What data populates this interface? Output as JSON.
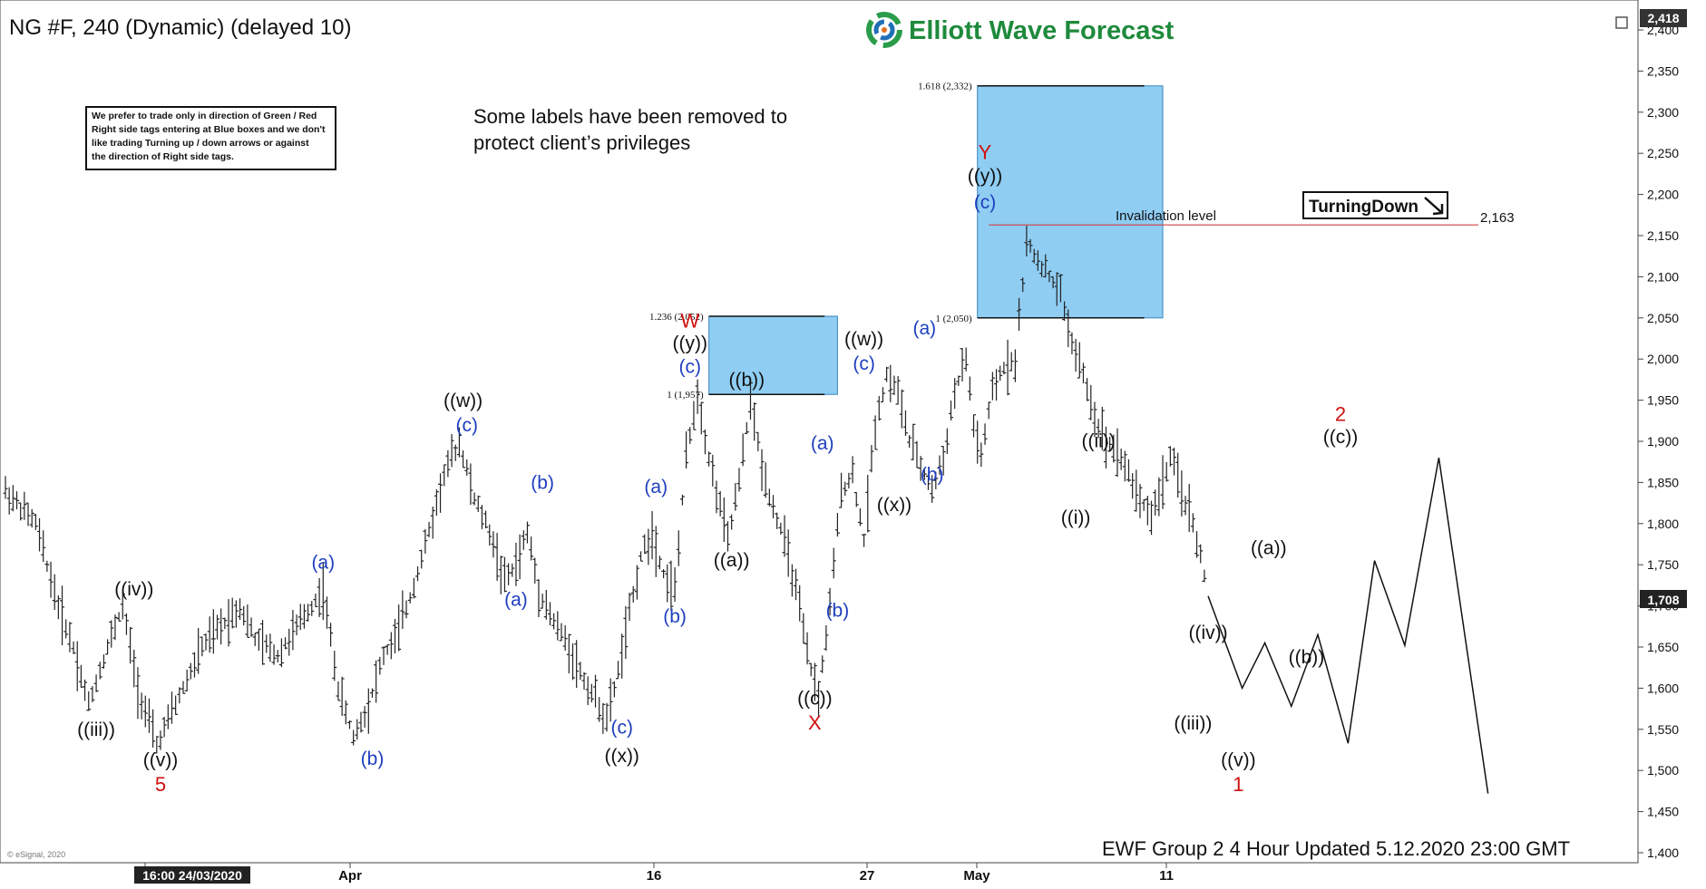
{
  "header": {
    "symbol_title": "NG #F, 240 (Dynamic) (delayed 10)",
    "brand": "Elliott Wave Forecast",
    "notice": "Some labels have been removed to protect client’s privileges",
    "trade_note": "We prefer to trade only in direction of Green / Red Right side tags entering at Blue boxes and we don't like trading Turning up / down arrows or against the direction of Right side tags.",
    "footer": "EWF Group 2 4 Hour Updated 5.12.2020 23:00 GMT",
    "copyright": "© eSignal, 2020",
    "turning_tag": "TurningDown",
    "invalidation_label": "Invalidation level",
    "invalidation_value": "2,163",
    "last_price": "1,708",
    "top_price": "2,418"
  },
  "colors": {
    "bluebox": "#8fcdf3",
    "wave_blue": "#1f3fbf",
    "wave_red": "#d01010",
    "wave_black": "#111111",
    "candle": "#222222",
    "invalidation_line": "#d04040"
  },
  "chart_data": {
    "type": "line",
    "ylim": [
      1400,
      2418
    ],
    "y_ticks": [
      "2,400",
      "2,350",
      "2,300",
      "2,250",
      "2,200",
      "2,150",
      "2,100",
      "2,050",
      "2,000",
      "1,950",
      "1,900",
      "1,850",
      "1,800",
      "1,750",
      "1,700",
      "1,650",
      "1,600",
      "1,550",
      "1,500",
      "1,450",
      "1,400"
    ],
    "x_labels": [
      "16:00 24/03/2020",
      "Apr",
      "16",
      "27",
      "May",
      "11"
    ],
    "series": [
      {
        "points": [
          [
            0,
            1840
          ],
          [
            8,
            1800
          ],
          [
            14,
            1700
          ],
          [
            18,
            1650
          ],
          [
            22,
            1580
          ],
          [
            27,
            1650
          ],
          [
            31,
            1700
          ],
          [
            35,
            1600
          ],
          [
            40,
            1530
          ],
          [
            45,
            1580
          ],
          [
            52,
            1650
          ],
          [
            58,
            1680
          ],
          [
            62,
            1700
          ],
          [
            66,
            1660
          ],
          [
            72,
            1640
          ],
          [
            78,
            1680
          ],
          [
            84,
            1720
          ],
          [
            88,
            1600
          ],
          [
            92,
            1540
          ],
          [
            96,
            1580
          ],
          [
            100,
            1640
          ],
          [
            103,
            1660
          ],
          [
            107,
            1710
          ],
          [
            112,
            1790
          ],
          [
            116,
            1860
          ],
          [
            120,
            1900
          ],
          [
            124,
            1830
          ],
          [
            128,
            1790
          ],
          [
            132,
            1730
          ],
          [
            135,
            1750
          ],
          [
            138,
            1790
          ],
          [
            141,
            1720
          ],
          [
            145,
            1680
          ],
          [
            149,
            1650
          ],
          [
            153,
            1610
          ],
          [
            157,
            1580
          ],
          [
            159,
            1560
          ],
          [
            162,
            1620
          ],
          [
            165,
            1690
          ],
          [
            168,
            1760
          ],
          [
            171,
            1790
          ],
          [
            174,
            1740
          ],
          [
            177,
            1720
          ],
          [
            180,
            1880
          ],
          [
            183,
            1960
          ],
          [
            186,
            1880
          ],
          [
            189,
            1820
          ],
          [
            191,
            1780
          ],
          [
            194,
            1850
          ],
          [
            197,
            1950
          ],
          [
            200,
            1870
          ],
          [
            203,
            1820
          ],
          [
            206,
            1780
          ],
          [
            209,
            1720
          ],
          [
            212,
            1640
          ],
          [
            215,
            1590
          ],
          [
            218,
            1700
          ],
          [
            221,
            1840
          ],
          [
            224,
            1860
          ],
          [
            227,
            1780
          ],
          [
            230,
            1920
          ],
          [
            233,
            1980
          ],
          [
            236,
            1960
          ],
          [
            239,
            1900
          ],
          [
            242,
            1870
          ],
          [
            245,
            1840
          ],
          [
            248,
            1880
          ],
          [
            251,
            1960
          ],
          [
            254,
            2000
          ],
          [
            256,
            1920
          ],
          [
            258,
            1880
          ],
          [
            261,
            1960
          ],
          [
            264,
            1990
          ],
          [
            267,
            2000
          ],
          [
            270,
            2140
          ],
          [
            273,
            2120
          ],
          [
            276,
            2100
          ],
          [
            279,
            2080
          ],
          [
            282,
            2020
          ],
          [
            285,
            1980
          ],
          [
            288,
            1930
          ],
          [
            291,
            1900
          ],
          [
            294,
            1890
          ],
          [
            297,
            1860
          ],
          [
            300,
            1830
          ],
          [
            303,
            1810
          ],
          [
            306,
            1850
          ],
          [
            308,
            1880
          ],
          [
            311,
            1840
          ],
          [
            314,
            1800
          ],
          [
            316,
            1760
          ],
          [
            318,
            1710
          ]
        ]
      },
      {
        "name": "projection",
        "points": [
          [
            318,
            1712
          ],
          [
            327,
            1600
          ],
          [
            333,
            1655
          ],
          [
            340,
            1578
          ],
          [
            347,
            1665
          ],
          [
            355,
            1533
          ],
          [
            362,
            1755
          ],
          [
            370,
            1652
          ],
          [
            379,
            1880
          ],
          [
            392,
            1472
          ]
        ]
      }
    ],
    "boxes": [
      {
        "x0": 186,
        "x1": 220,
        "y0": 1957,
        "y1": 2052,
        "top_label": "1.236 (2,052)",
        "bottom_label": "1 (1,957)"
      },
      {
        "x0": 257,
        "x1": 306,
        "y0": 2050,
        "y1": 2332,
        "top_label": "1.618 (2,332)",
        "bottom_label": "1 (2,050)"
      }
    ],
    "invalidation_level": 2163,
    "wave_labels": [
      {
        "t": "((iii))",
        "x": 24,
        "y": 1542,
        "c": "black"
      },
      {
        "t": "((iv))",
        "x": 34,
        "y": 1713,
        "c": "black"
      },
      {
        "t": "((v))",
        "x": 41,
        "y": 1505,
        "c": "black"
      },
      {
        "t": "5",
        "x": 41,
        "y": 1475,
        "c": "red"
      },
      {
        "t": "(a)",
        "x": 84,
        "y": 1745,
        "c": "blue"
      },
      {
        "t": "(b)",
        "x": 97,
        "y": 1507,
        "c": "blue"
      },
      {
        "t": "((w))",
        "x": 121,
        "y": 1942,
        "c": "black"
      },
      {
        "t": "(c)",
        "x": 122,
        "y": 1912,
        "c": "blue"
      },
      {
        "t": "(a)",
        "x": 135,
        "y": 1700,
        "c": "blue"
      },
      {
        "t": "(b)",
        "x": 142,
        "y": 1842,
        "c": "blue"
      },
      {
        "t": "(c)",
        "x": 163,
        "y": 1545,
        "c": "blue"
      },
      {
        "t": "((x))",
        "x": 163,
        "y": 1510,
        "c": "black"
      },
      {
        "t": "(a)",
        "x": 172,
        "y": 1837,
        "c": "blue"
      },
      {
        "t": "(b)",
        "x": 177,
        "y": 1680,
        "c": "blue"
      },
      {
        "t": "W",
        "x": 181,
        "y": 2038,
        "c": "red"
      },
      {
        "t": "((y))",
        "x": 181,
        "y": 2012,
        "c": "black"
      },
      {
        "t": "(c)",
        "x": 181,
        "y": 1983,
        "c": "blue"
      },
      {
        "t": "((b))",
        "x": 196,
        "y": 1967,
        "c": "black"
      },
      {
        "t": "((a))",
        "x": 192,
        "y": 1748,
        "c": "black"
      },
      {
        "t": "(a)",
        "x": 216,
        "y": 1890,
        "c": "blue"
      },
      {
        "t": "(b)",
        "x": 220,
        "y": 1687,
        "c": "blue"
      },
      {
        "t": "((c))",
        "x": 214,
        "y": 1580,
        "c": "black"
      },
      {
        "t": "X",
        "x": 214,
        "y": 1550,
        "c": "red"
      },
      {
        "t": "((w))",
        "x": 227,
        "y": 2017,
        "c": "black"
      },
      {
        "t": "(c)",
        "x": 227,
        "y": 1987,
        "c": "blue"
      },
      {
        "t": "((x))",
        "x": 235,
        "y": 1815,
        "c": "black"
      },
      {
        "t": "(a)",
        "x": 243,
        "y": 2030,
        "c": "blue"
      },
      {
        "t": "(b)",
        "x": 245,
        "y": 1852,
        "c": "blue"
      },
      {
        "t": "Y",
        "x": 259,
        "y": 2243,
        "c": "red"
      },
      {
        "t": "((y))",
        "x": 259,
        "y": 2215,
        "c": "black"
      },
      {
        "t": "(c)",
        "x": 259,
        "y": 2183,
        "c": "blue"
      },
      {
        "t": "((ii))",
        "x": 289,
        "y": 1893,
        "c": "black"
      },
      {
        "t": "((i))",
        "x": 283,
        "y": 1800,
        "c": "black"
      },
      {
        "t": "((iii))",
        "x": 314,
        "y": 1550,
        "c": "black"
      },
      {
        "t": "((iv))",
        "x": 318,
        "y": 1660,
        "c": "black"
      },
      {
        "t": "((v))",
        "x": 326,
        "y": 1505,
        "c": "black"
      },
      {
        "t": "1",
        "x": 326,
        "y": 1475,
        "c": "red"
      },
      {
        "t": "((a))",
        "x": 334,
        "y": 1763,
        "c": "black"
      },
      {
        "t": "((b))",
        "x": 344,
        "y": 1630,
        "c": "black"
      },
      {
        "t": "2",
        "x": 353,
        "y": 1925,
        "c": "red"
      },
      {
        "t": "((c))",
        "x": 353,
        "y": 1898,
        "c": "black"
      }
    ]
  }
}
